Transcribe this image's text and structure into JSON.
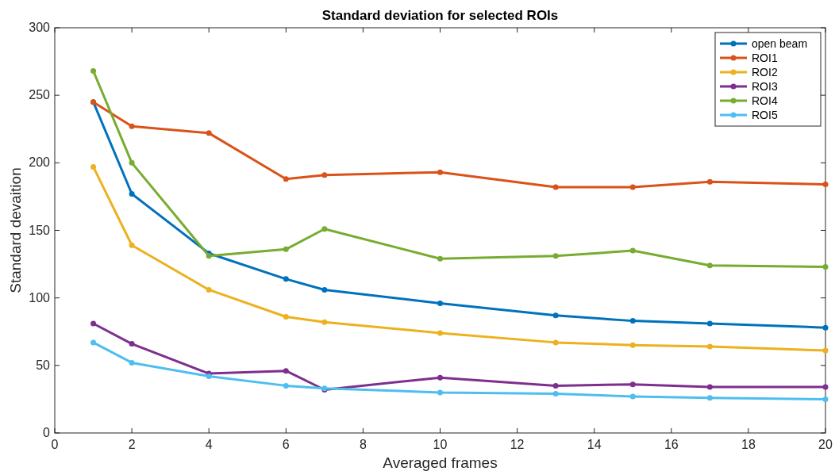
{
  "chart_data": {
    "type": "line",
    "title": "Standard deviation for selected ROIs",
    "xlabel": "Averaged frames",
    "ylabel": "Standard devaition",
    "x": [
      1,
      2,
      4,
      6,
      7,
      10,
      13,
      15,
      17,
      20
    ],
    "series": [
      {
        "name": "open beam",
        "color": "#0072bd",
        "values": [
          245,
          177,
          133,
          114,
          106,
          96,
          87,
          83,
          81,
          78
        ]
      },
      {
        "name": "ROI1",
        "color": "#d95319",
        "values": [
          245,
          227,
          222,
          188,
          191,
          193,
          182,
          182,
          186,
          184
        ]
      },
      {
        "name": "ROI2",
        "color": "#edb120",
        "values": [
          197,
          139,
          106,
          86,
          82,
          74,
          67,
          65,
          64,
          61
        ]
      },
      {
        "name": "ROI3",
        "color": "#7e2f8e",
        "values": [
          81,
          66,
          44,
          46,
          32,
          41,
          35,
          36,
          34,
          34
        ]
      },
      {
        "name": "ROI4",
        "color": "#77ac30",
        "values": [
          268,
          200,
          131,
          136,
          151,
          129,
          131,
          135,
          124,
          123
        ]
      },
      {
        "name": "ROI5",
        "color": "#4dbeee",
        "values": [
          67,
          52,
          42,
          35,
          33,
          30,
          29,
          27,
          26,
          25
        ]
      }
    ],
    "xlim": [
      0,
      20
    ],
    "xticks": [
      0,
      2,
      4,
      6,
      8,
      10,
      12,
      14,
      16,
      18,
      20
    ],
    "ylim": [
      0,
      300
    ],
    "yticks": [
      0,
      50,
      100,
      150,
      200,
      250,
      300
    ],
    "grid": false,
    "legend": "top right",
    "marker": "circle",
    "line_style": "solid"
  }
}
